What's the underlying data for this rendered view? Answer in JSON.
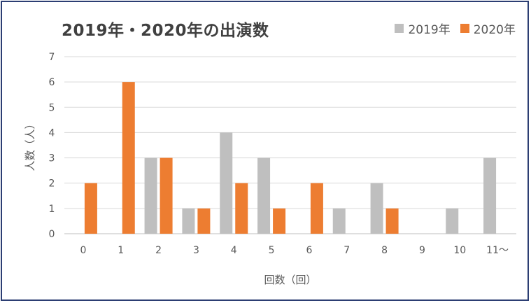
{
  "chart_data": {
    "type": "bar",
    "title": "2019年・2020年の出演数",
    "xlabel": "回数（回）",
    "ylabel": "人数（人）",
    "categories": [
      "0",
      "1",
      "2",
      "3",
      "4",
      "5",
      "6",
      "7",
      "8",
      "9",
      "10",
      "11～"
    ],
    "ylim": [
      0,
      7
    ],
    "yticks": [
      "0",
      "1",
      "2",
      "3",
      "4",
      "5",
      "6",
      "7"
    ],
    "grid": true,
    "legend_position": "top-right",
    "series": [
      {
        "name": "2019年",
        "color": "#BFBFBF",
        "values": [
          0,
          0,
          3,
          1,
          4,
          3,
          0,
          1,
          2,
          0,
          1,
          3
        ]
      },
      {
        "name": "2020年",
        "color": "#ED7D31",
        "values": [
          2,
          6,
          3,
          1,
          2,
          1,
          2,
          0,
          1,
          0,
          0,
          0
        ]
      }
    ]
  }
}
